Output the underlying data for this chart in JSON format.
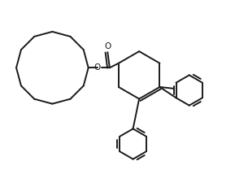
{
  "bg_color": "#ffffff",
  "line_color": "#1a1a1a",
  "line_width": 1.4,
  "fig_width": 3.05,
  "fig_height": 2.25,
  "dpi": 100,
  "xlim": [
    -2.2,
    3.8
  ],
  "ylim": [
    -2.4,
    1.8
  ]
}
